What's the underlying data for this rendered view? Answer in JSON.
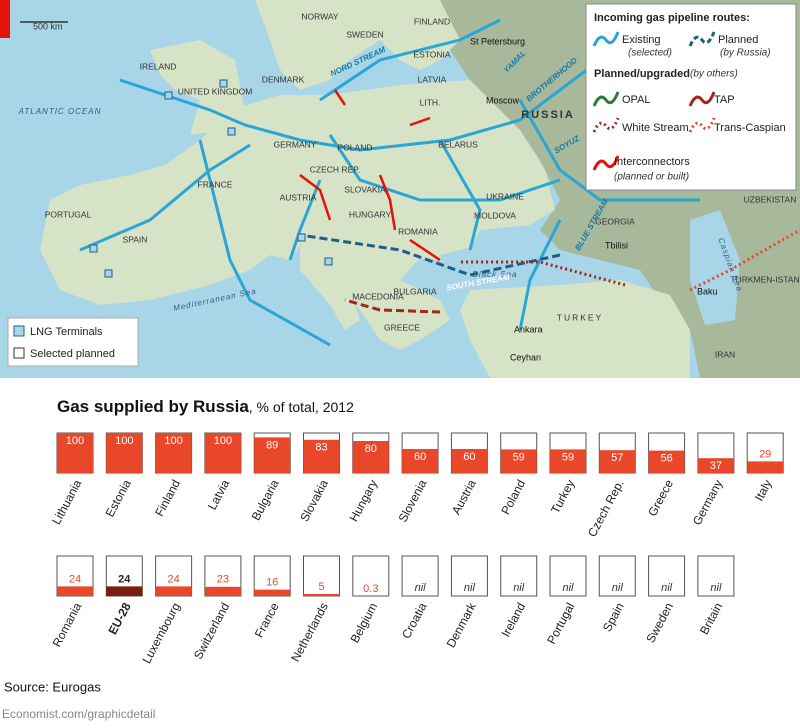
{
  "map": {
    "scale_label": "500 km",
    "labels": {
      "norway": "NORWAY",
      "sweden": "SWEDEN",
      "finland": "FINLAND",
      "st_petersburg": "St Petersburg",
      "ireland": "IRELAND",
      "united_kingdom": "UNITED KINGDOM",
      "atlantic": "ATLANTIC OCEAN",
      "denmark": "DENMARK",
      "estonia": "ESTONIA",
      "latvia": "LATVIA",
      "lith": "LITH.",
      "moscow": "Moscow",
      "russia": "RUSSIA",
      "nord_stream": "NORD STREAM",
      "yamal": "YAMAL",
      "brotherhood": "BROTHERHOOD",
      "soyuz": "SOYUZ",
      "poland": "POLAND",
      "belarus": "BELARUS",
      "germany": "GERMANY",
      "czech": "CZECH REP.",
      "slovakia": "SLOVAKIA",
      "austria": "AUSTRIA",
      "hungary": "HUNGARY",
      "france": "FRANCE",
      "ukraine": "UKRAINE",
      "moldova": "MOLDOVA",
      "romania": "ROMANIA",
      "portugal": "PORTUGAL",
      "spain": "SPAIN",
      "blue_stream": "BLUE STREAM",
      "georgia": "GEORGIA",
      "tbilisi": "Tbilisi",
      "south_stream": "SOUTH STREAM",
      "black_sea": "Black Sea",
      "bulgaria": "BULGARIA",
      "macedonia": "MACEDONIA",
      "greece": "GREECE",
      "turkey": "TURKEY",
      "ankara": "Ankara",
      "ceyhan": "Ceyhan",
      "mediterranean": "Mediterranean Sea",
      "caspian": "Caspian Sea",
      "baku": "Baku",
      "turkmenistan": "TURKMEN-ISTAN",
      "uzbekistan": "UZBEKISTAN",
      "iran": "IRAN"
    },
    "legend": {
      "title": "Incoming gas pipeline routes:",
      "existing": "Existing",
      "existing_note": "(selected)",
      "planned": "Planned",
      "planned_note": "(by Russia)",
      "others_title": "Planned/upgraded",
      "others_note": "(by others)",
      "opal": "OPAL",
      "tap": "TAP",
      "white_stream": "White Stream",
      "trans_caspian": "Trans-Caspian",
      "interconnectors": "Interconnectors",
      "interconnectors_note": "(planned or built)"
    },
    "key": {
      "lng": "LNG Terminals",
      "planned": "Selected planned"
    }
  },
  "chart_data": {
    "type": "bar",
    "title": "Gas supplied by Russia",
    "subtitle": ", % of total, 2012",
    "categories": [
      "Lithuania",
      "Estonia",
      "Finland",
      "Latvia",
      "Bulgaria",
      "Slovakia",
      "Hungary",
      "Slovenia",
      "Austria",
      "Poland",
      "Turkey",
      "Czech Rep.",
      "Greece",
      "Germany",
      "Italy",
      "Romania",
      "EU-28",
      "Luxembourg",
      "Switzerland",
      "France",
      "Netherlands",
      "Belgium",
      "Croatia",
      "Denmark",
      "Ireland",
      "Portugal",
      "Spain",
      "Sweden",
      "Britain"
    ],
    "values": [
      100,
      100,
      100,
      100,
      89,
      83,
      80,
      60,
      60,
      59,
      59,
      57,
      56,
      37,
      29,
      24,
      24,
      24,
      23,
      16,
      5,
      0.3,
      0,
      0,
      0,
      0,
      0,
      0,
      0
    ],
    "value_labels": [
      "100",
      "100",
      "100",
      "100",
      "89",
      "83",
      "80",
      "60",
      "60",
      "59",
      "59",
      "57",
      "56",
      "37",
      "29",
      "24",
      "24",
      "24",
      "23",
      "16",
      "5",
      "0.3",
      "nil",
      "nil",
      "nil",
      "nil",
      "nil",
      "nil",
      "nil"
    ],
    "color": "#e8472a",
    "colors": [
      "#e8472a",
      "#e8472a",
      "#e8472a",
      "#e8472a",
      "#e8472a",
      "#e8472a",
      "#e8472a",
      "#e8472a",
      "#e8472a",
      "#e8472a",
      "#e8472a",
      "#e8472a",
      "#e8472a",
      "#e8472a",
      "#e8472a",
      "#e8472a",
      "#7a1d0e",
      "#e8472a",
      "#e8472a",
      "#e8472a",
      "#e8472a",
      "#e8472a",
      "#e8472a",
      "#e8472a",
      "#e8472a",
      "#e8472a",
      "#e8472a",
      "#e8472a",
      "#e8472a"
    ],
    "ylim": [
      0,
      100
    ]
  },
  "source": "Source: Eurogas",
  "footer": "Economist.com/graphicdetail"
}
